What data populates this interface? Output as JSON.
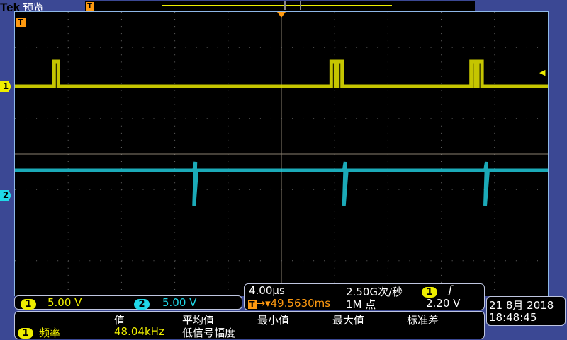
{
  "header": {
    "brand": "Tek",
    "mode": "预览"
  },
  "colors": {
    "ch1": "#e8e800",
    "ch2": "#20c8d8",
    "trigger": "#ff9a10",
    "background": "#3b4894"
  },
  "channels": [
    {
      "id": "1",
      "scale": "5.00 V",
      "pulse_times_us": [
        -16.9,
        3.9,
        4.4,
        14.4,
        14.9
      ]
    },
    {
      "id": "2",
      "scale": "5.00 V",
      "spike_times_us": [
        -6.45,
        4.8,
        15.4
      ]
    }
  ],
  "timebase": {
    "scale": "4.00µs",
    "sample_rate": "2.50G次/秒",
    "trigger_position": "49.5630ms",
    "record_length": "1M 点",
    "trigger_source": "1",
    "trigger_slope_icon": "rising-edge-icon",
    "trigger_level": "2.20 V"
  },
  "datetime": {
    "date": "21 8月  2018",
    "time": "18:48:45"
  },
  "measurements": {
    "headers": [
      "值",
      "平均值",
      "最小值",
      "最大值",
      "标准差"
    ],
    "rows": [
      {
        "source": "1",
        "name": "频率",
        "value": "48.04kHz",
        "status": "低信号幅度"
      }
    ]
  },
  "markers": {
    "ch1": "1",
    "ch2": "2",
    "trigger": "T"
  }
}
